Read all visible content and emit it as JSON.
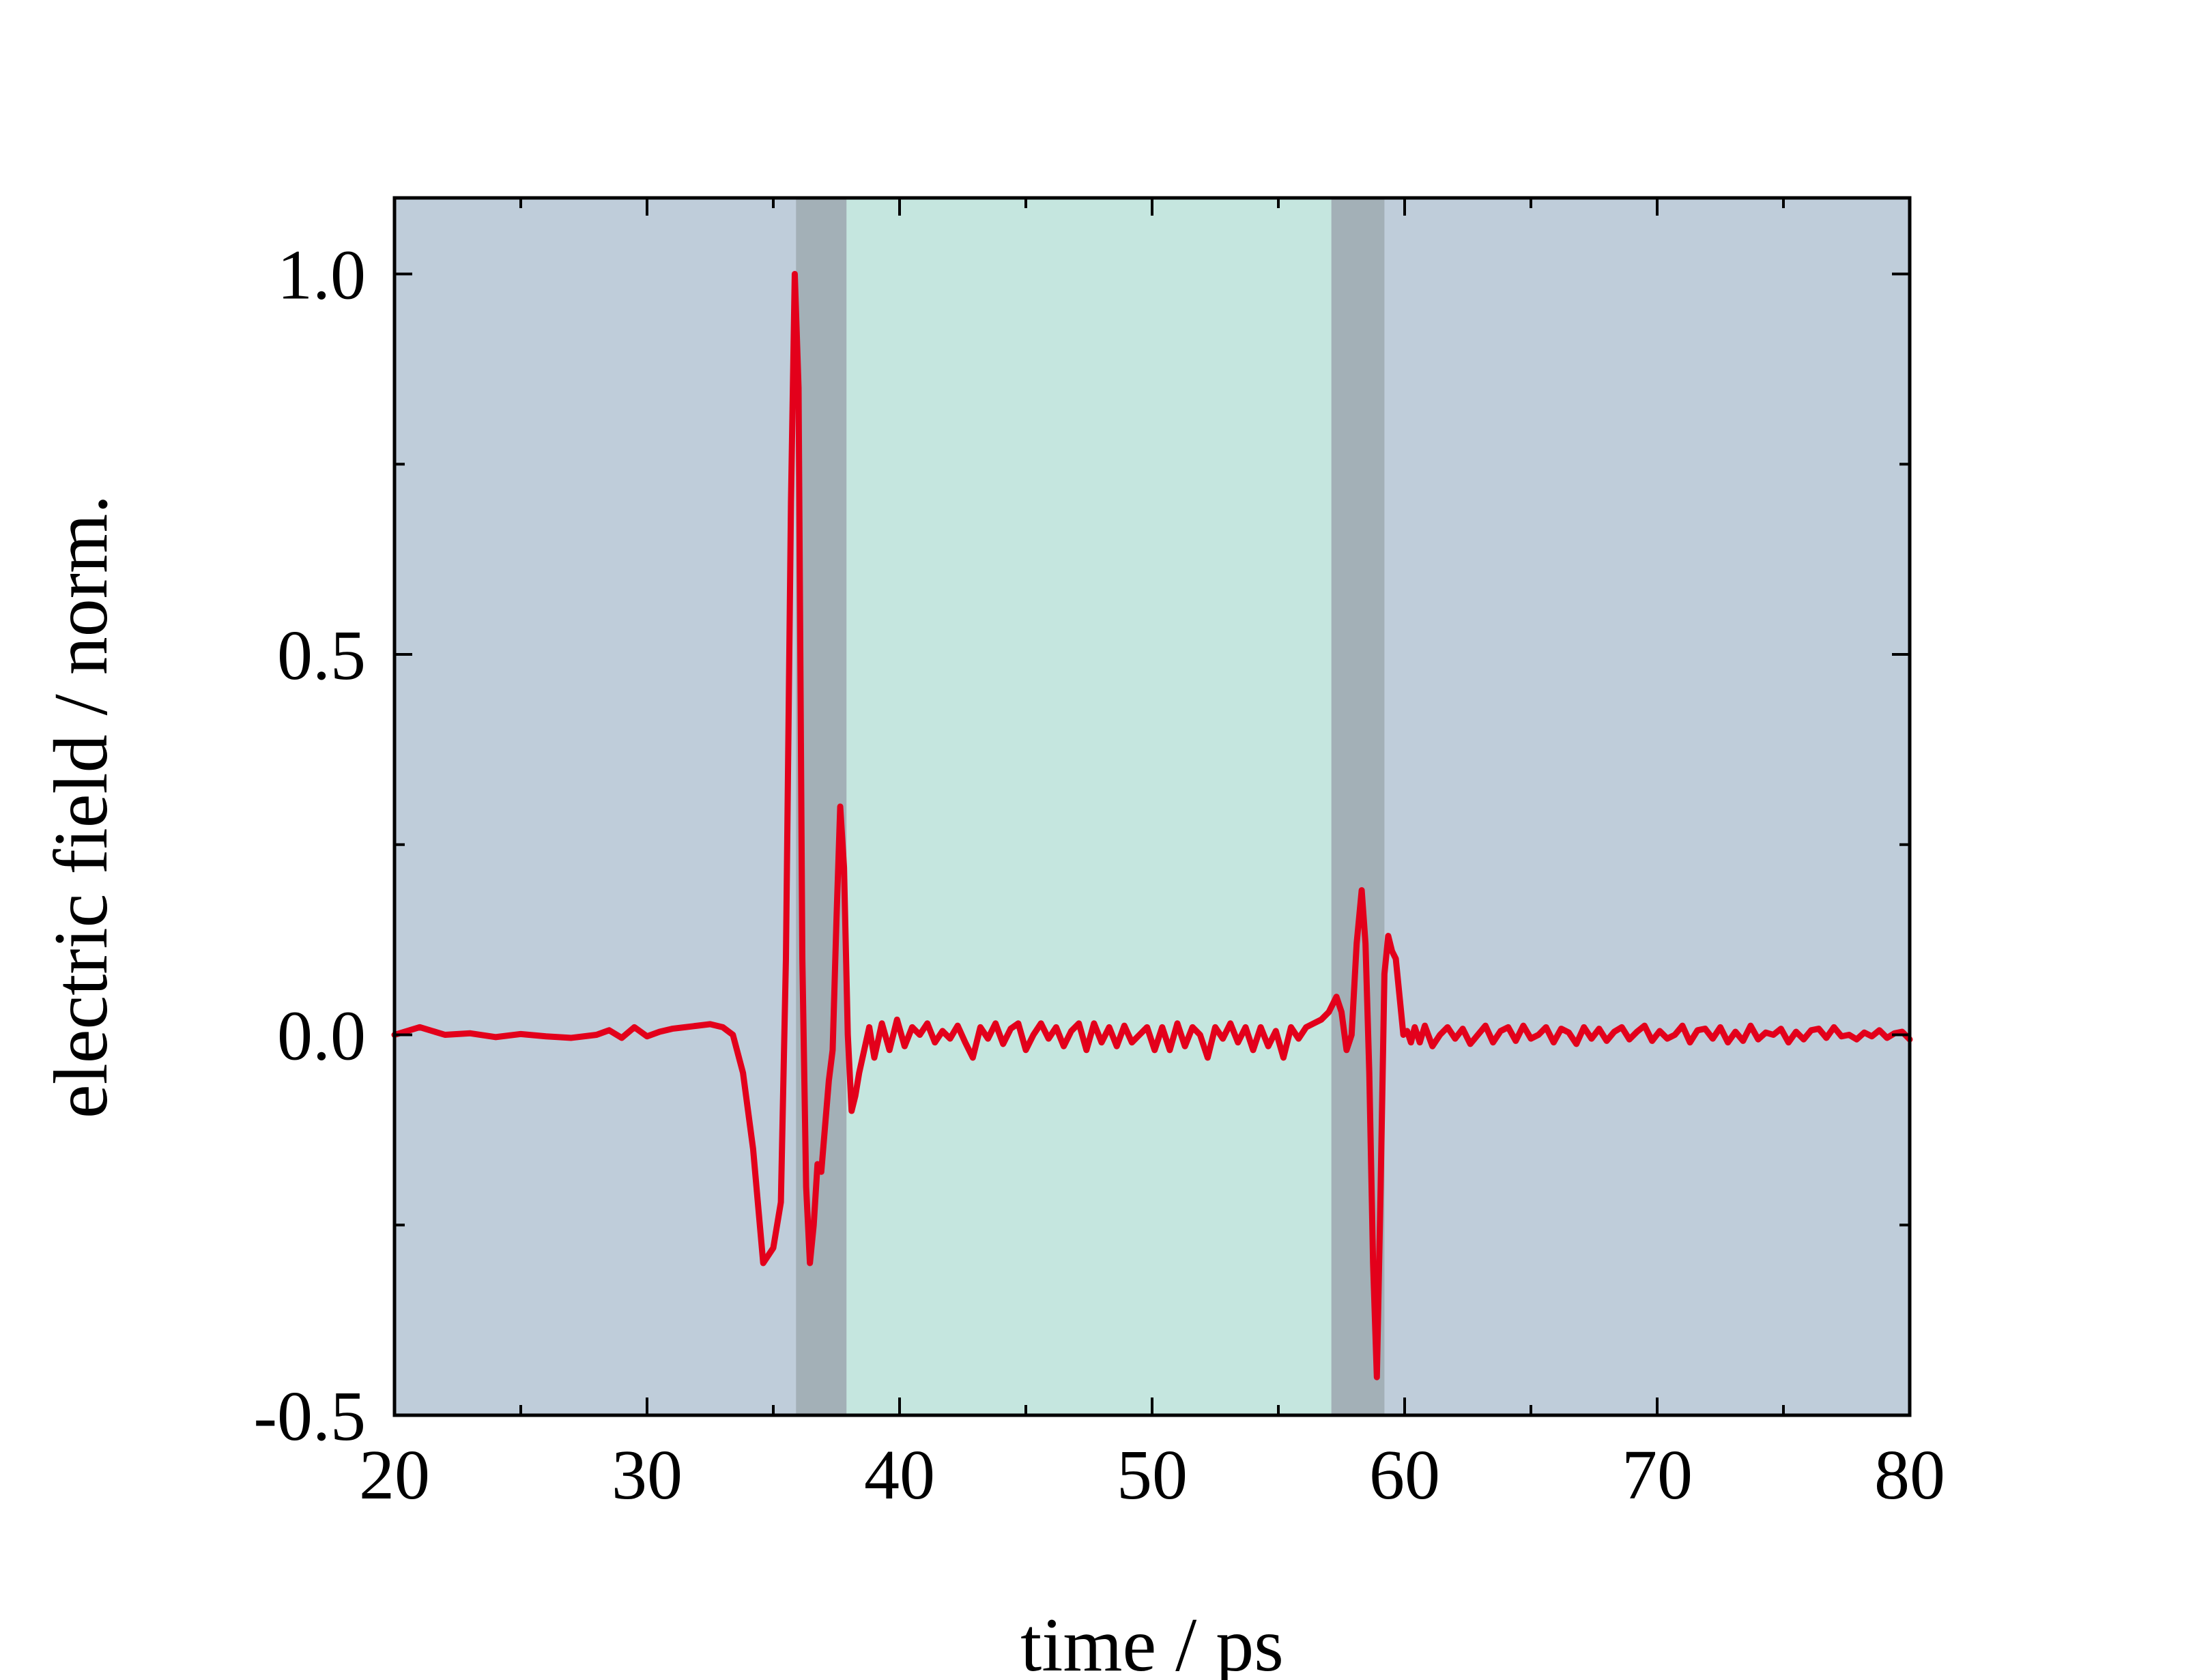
{
  "chart_data": {
    "type": "line",
    "title": "",
    "xlabel": "time / ps",
    "ylabel": "electric field / norm.",
    "xlim": [
      20,
      80
    ],
    "ylim": [
      -0.5,
      1.1
    ],
    "x_major_ticks": [
      20,
      30,
      40,
      50,
      60,
      70,
      80
    ],
    "x_tick_labels": [
      "20",
      "30",
      "40",
      "50",
      "60",
      "70",
      "80"
    ],
    "y_major_ticks": [
      -0.5,
      0.0,
      0.5,
      1.0
    ],
    "y_tick_labels": [
      "-0.5",
      "0.0",
      "0.5",
      "1.0"
    ],
    "x_minor_step": 5,
    "y_minor_step": 0.25,
    "grid": false,
    "legend": "none",
    "background_color": "#bfcdda",
    "regions": [
      {
        "x0": 35.9,
        "x1": 37.9,
        "color": "#a3b0b7"
      },
      {
        "x0": 37.9,
        "x1": 57.1,
        "color": "#c5e6df"
      },
      {
        "x0": 57.1,
        "x1": 59.2,
        "color": "#a3b0b7"
      }
    ],
    "series": [
      {
        "color": "#e3001b",
        "x": [
          20.0,
          21.0,
          22.0,
          23.0,
          24.0,
          25.0,
          26.0,
          27.0,
          28.0,
          28.5,
          29.0,
          29.5,
          30.0,
          30.5,
          31.0,
          31.5,
          32.0,
          32.5,
          33.0,
          33.4,
          33.8,
          34.2,
          34.6,
          35.0,
          35.3,
          35.5,
          35.7,
          35.85,
          36.0,
          36.15,
          36.3,
          36.45,
          36.6,
          36.75,
          36.9,
          37.05,
          37.2,
          37.35,
          37.5,
          37.65,
          37.8,
          37.95,
          38.1,
          38.25,
          38.4,
          38.6,
          38.8,
          39.0,
          39.3,
          39.6,
          39.9,
          40.2,
          40.5,
          40.8,
          41.1,
          41.4,
          41.7,
          42.0,
          42.3,
          42.6,
          42.9,
          43.2,
          43.5,
          43.8,
          44.1,
          44.4,
          44.7,
          45.0,
          45.3,
          45.6,
          45.9,
          46.2,
          46.5,
          46.8,
          47.1,
          47.4,
          47.7,
          48.0,
          48.3,
          48.6,
          48.9,
          49.2,
          49.5,
          49.8,
          50.1,
          50.4,
          50.7,
          51.0,
          51.3,
          51.6,
          51.9,
          52.2,
          52.5,
          52.8,
          53.1,
          53.4,
          53.7,
          54.0,
          54.3,
          54.6,
          54.9,
          55.2,
          55.5,
          55.8,
          56.1,
          56.4,
          56.7,
          57.0,
          57.3,
          57.5,
          57.7,
          57.9,
          58.1,
          58.3,
          58.45,
          58.6,
          58.75,
          58.9,
          59.05,
          59.2,
          59.35,
          59.5,
          59.65,
          59.8,
          59.95,
          60.1,
          60.25,
          60.4,
          60.6,
          60.8,
          61.1,
          61.4,
          61.7,
          62.0,
          62.3,
          62.6,
          62.9,
          63.2,
          63.5,
          63.8,
          64.1,
          64.4,
          64.7,
          65.0,
          65.3,
          65.6,
          65.9,
          66.2,
          66.5,
          66.8,
          67.1,
          67.4,
          67.7,
          68.0,
          68.3,
          68.6,
          68.9,
          69.2,
          69.5,
          69.8,
          70.1,
          70.4,
          70.7,
          71.0,
          71.3,
          71.6,
          71.9,
          72.2,
          72.5,
          72.8,
          73.1,
          73.4,
          73.7,
          74.0,
          74.3,
          74.6,
          74.9,
          75.2,
          75.5,
          75.8,
          76.1,
          76.4,
          76.7,
          77.0,
          77.3,
          77.6,
          77.9,
          78.2,
          78.5,
          78.8,
          79.1,
          79.4,
          79.7,
          80.0
        ],
        "y": [
          0.0,
          0.01,
          0.0,
          0.002,
          -0.003,
          0.001,
          -0.002,
          -0.004,
          0.0,
          0.006,
          -0.004,
          0.01,
          -0.002,
          0.004,
          0.008,
          0.01,
          0.012,
          0.014,
          0.01,
          0.0,
          -0.05,
          -0.15,
          -0.3,
          -0.28,
          -0.22,
          0.1,
          0.7,
          1.0,
          0.85,
          0.1,
          -0.2,
          -0.3,
          -0.25,
          -0.17,
          -0.18,
          -0.12,
          -0.06,
          -0.02,
          0.15,
          0.3,
          0.22,
          0.0,
          -0.1,
          -0.08,
          -0.05,
          -0.02,
          0.01,
          -0.03,
          0.015,
          -0.02,
          0.02,
          -0.015,
          0.01,
          0.0,
          0.015,
          -0.01,
          0.005,
          -0.005,
          0.012,
          -0.01,
          -0.03,
          0.01,
          -0.005,
          0.015,
          -0.012,
          0.008,
          0.015,
          -0.02,
          0.0,
          0.015,
          -0.005,
          0.01,
          -0.015,
          0.005,
          0.015,
          -0.02,
          0.015,
          -0.01,
          0.01,
          -0.015,
          0.012,
          -0.01,
          0.0,
          0.01,
          -0.02,
          0.01,
          -0.02,
          0.015,
          -0.015,
          0.01,
          0.0,
          -0.03,
          0.01,
          -0.005,
          0.015,
          -0.01,
          0.01,
          -0.02,
          0.01,
          -0.015,
          0.005,
          -0.03,
          0.01,
          -0.005,
          0.01,
          0.015,
          0.02,
          0.03,
          0.05,
          0.03,
          -0.02,
          0.0,
          0.12,
          0.19,
          0.12,
          -0.05,
          -0.3,
          -0.45,
          -0.2,
          0.08,
          0.13,
          0.11,
          0.1,
          0.05,
          0.0,
          0.005,
          -0.01,
          0.01,
          -0.01,
          0.012,
          -0.015,
          0.0,
          0.01,
          -0.005,
          0.008,
          -0.012,
          0.0,
          0.012,
          -0.01,
          0.005,
          0.01,
          -0.008,
          0.012,
          -0.005,
          0.0,
          0.01,
          -0.01,
          0.008,
          0.003,
          -0.012,
          0.01,
          -0.005,
          0.008,
          -0.008,
          0.004,
          0.01,
          -0.006,
          0.004,
          0.012,
          -0.008,
          0.005,
          -0.005,
          0.0,
          0.012,
          -0.01,
          0.006,
          0.008,
          -0.005,
          0.01,
          -0.01,
          0.004,
          -0.008,
          0.012,
          -0.006,
          0.003,
          0.0,
          0.008,
          -0.01,
          0.004,
          -0.006,
          0.006,
          0.008,
          -0.004,
          0.01,
          -0.002,
          0.0,
          -0.006,
          0.003,
          -0.002,
          0.006,
          -0.004,
          0.002,
          0.004,
          -0.006
        ]
      }
    ]
  }
}
